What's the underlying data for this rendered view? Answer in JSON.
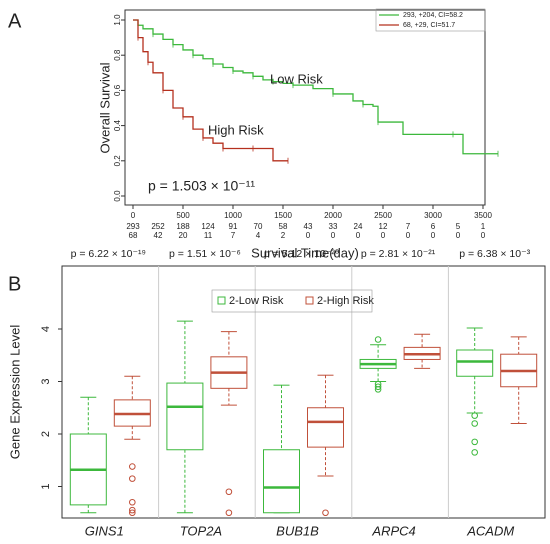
{
  "chart_data": [
    {
      "type": "step",
      "panel": "A",
      "ylabel": "Overall Survival",
      "xlabel": "Survival Time(day)",
      "annotation": "p = 1.503 × 10⁻¹¹",
      "xlim": [
        0,
        3500
      ],
      "ylim": [
        0,
        1
      ],
      "xticks": [
        0,
        500,
        1000,
        1500,
        2000,
        2500,
        3000,
        3500
      ],
      "yticks": [
        {
          "value": 0,
          "label": "0.0"
        },
        0.2,
        0.4,
        0.6,
        0.8,
        {
          "value": 1,
          "label": "1.0"
        }
      ],
      "at_risk_times": [
        0,
        250,
        500,
        750,
        1000,
        1250,
        1500,
        1750,
        2000,
        2250,
        2500,
        2750,
        3000,
        3250,
        3500
      ],
      "series": [
        {
          "name": "293, +204, CI=58.2",
          "label": "Low Risk",
          "color": "#3cb83c",
          "x": [
            0,
            50,
            100,
            200,
            300,
            400,
            500,
            600,
            700,
            800,
            900,
            1000,
            1100,
            1200,
            1300,
            1400,
            1500,
            1600,
            1800,
            2000,
            2200,
            2300,
            2400,
            2450,
            2700,
            3200,
            3300,
            3650
          ],
          "values": [
            1,
            0.97,
            0.95,
            0.92,
            0.89,
            0.86,
            0.83,
            0.8,
            0.78,
            0.75,
            0.73,
            0.71,
            0.7,
            0.68,
            0.66,
            0.65,
            0.64,
            0.63,
            0.61,
            0.58,
            0.54,
            0.52,
            0.51,
            0.42,
            0.35,
            0.35,
            0.24,
            0.24
          ],
          "at_risk": [
            293,
            252,
            188,
            124,
            91,
            70,
            58,
            43,
            33,
            24,
            12,
            7,
            6,
            5,
            1
          ]
        },
        {
          "name": "68, +29, CI=51.7",
          "label": "High Risk",
          "color": "#b5301e",
          "x": [
            0,
            50,
            100,
            150,
            200,
            300,
            400,
            500,
            600,
            700,
            800,
            900,
            1000,
            1200,
            1400,
            1550
          ],
          "values": [
            1,
            0.9,
            0.82,
            0.76,
            0.7,
            0.6,
            0.5,
            0.45,
            0.38,
            0.33,
            0.3,
            0.27,
            0.27,
            0.27,
            0.2,
            0.2
          ],
          "at_risk": [
            68,
            42,
            20,
            11,
            7,
            4,
            2,
            0,
            0,
            0,
            0,
            0,
            0,
            0,
            0
          ]
        }
      ]
    },
    {
      "type": "box",
      "panel": "B",
      "ylabel": "Gene Expression Level",
      "categories": [
        "GINS1",
        "TOP2A",
        "BUB1B",
        "ARPC4",
        "ACADM"
      ],
      "pvalues": [
        "p = 6.22 × 10⁻¹⁹",
        "p = 1.51 × 10⁻⁶",
        "p = 5.12 × 10⁻²⁰",
        "p = 2.81 × 10⁻²¹",
        "p = 6.38 × 10⁻³"
      ],
      "ylim": [
        0.4,
        5.2
      ],
      "yticks": [
        1,
        2,
        3,
        4
      ],
      "series": [
        {
          "name": "2-Low Risk",
          "color": "#3cb83c",
          "boxes": [
            {
              "whislo": 0.5,
              "q1": 0.65,
              "med": 1.32,
              "q3": 2.0,
              "whishi": 2.7,
              "outliers": []
            },
            {
              "whislo": 0.5,
              "q1": 1.7,
              "med": 2.52,
              "q3": 2.97,
              "whishi": 4.15,
              "outliers": []
            },
            {
              "whislo": 0.5,
              "q1": 0.5,
              "med": 0.98,
              "q3": 1.7,
              "whishi": 2.93,
              "outliers": []
            },
            {
              "whislo": 3.0,
              "q1": 3.25,
              "med": 3.33,
              "q3": 3.42,
              "whishi": 3.7,
              "outliers": [
                3.8,
                2.95,
                2.9,
                2.85
              ]
            },
            {
              "whislo": 2.4,
              "q1": 3.1,
              "med": 3.38,
              "q3": 3.6,
              "whishi": 4.02,
              "outliers": [
                2.35,
                2.2,
                1.85,
                1.65
              ]
            }
          ]
        },
        {
          "name": "2-High Risk",
          "color": "#c0503a",
          "boxes": [
            {
              "whislo": 1.9,
              "q1": 2.15,
              "med": 2.38,
              "q3": 2.65,
              "whishi": 3.1,
              "outliers": [
                1.38,
                1.15,
                0.7,
                0.55,
                0.5
              ]
            },
            {
              "whislo": 2.55,
              "q1": 2.87,
              "med": 3.17,
              "q3": 3.47,
              "whishi": 3.95,
              "outliers": [
                0.9,
                0.5
              ]
            },
            {
              "whislo": 1.2,
              "q1": 1.75,
              "med": 2.23,
              "q3": 2.5,
              "whishi": 3.12,
              "outliers": [
                0.5
              ]
            },
            {
              "whislo": 3.25,
              "q1": 3.42,
              "med": 3.52,
              "q3": 3.65,
              "whishi": 3.9,
              "outliers": []
            },
            {
              "whislo": 2.2,
              "q1": 2.9,
              "med": 3.2,
              "q3": 3.52,
              "whishi": 3.85,
              "outliers": []
            }
          ]
        }
      ]
    }
  ]
}
